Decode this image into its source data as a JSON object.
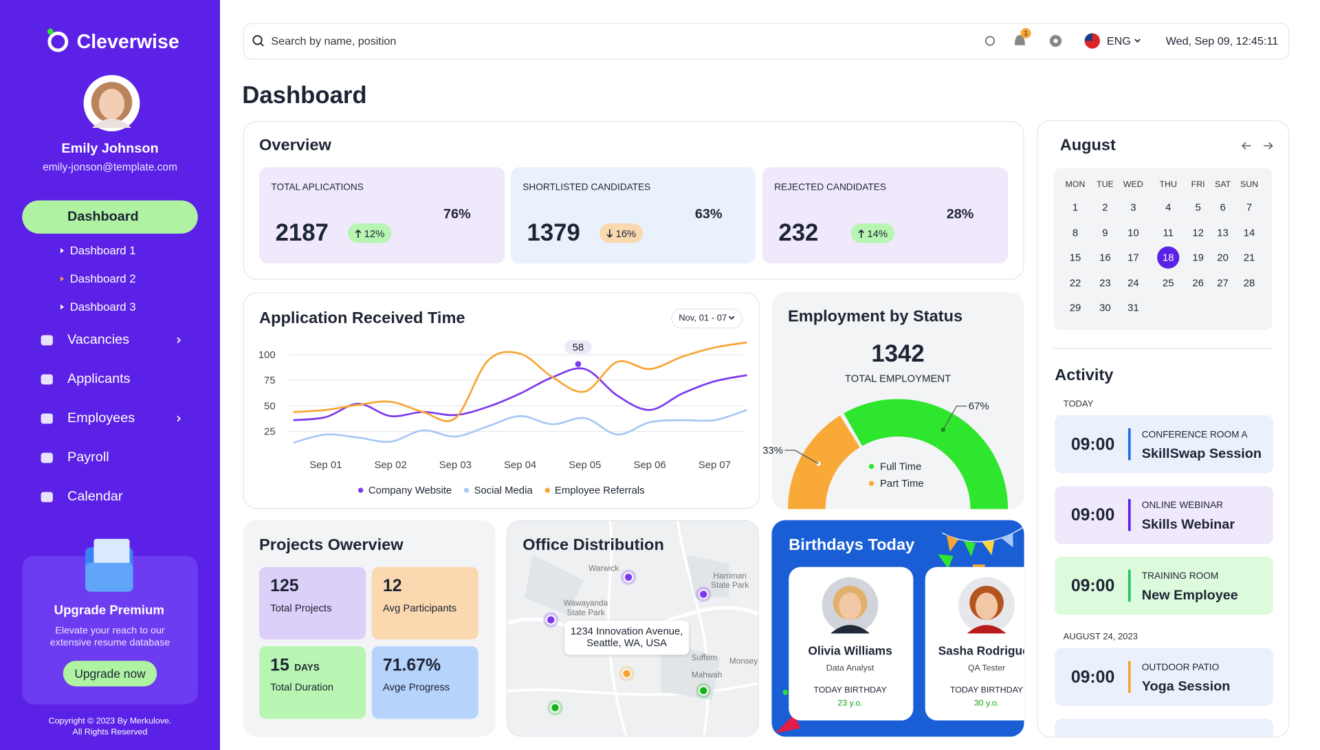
{
  "sidebar": {
    "brand": "Cleverwise",
    "user": {
      "name": "Emily Johnson",
      "email": "emily-jonson@template.com"
    },
    "menu": [
      {
        "label": "Dashboard",
        "active": true,
        "expandable": true,
        "children": [
          {
            "label": "Dashboard 1"
          },
          {
            "label": "Dashboard 2",
            "active": true
          },
          {
            "label": "Dashboard 3"
          }
        ]
      },
      {
        "label": "Vacancies",
        "expandable": true
      },
      {
        "label": "Applicants"
      },
      {
        "label": "Employees",
        "expandable": true
      },
      {
        "label": "Payroll"
      },
      {
        "label": "Calendar"
      }
    ],
    "promo": {
      "title": "Upgrade Premium",
      "text": "Elevate your reach to our extensive resume database",
      "button": "Upgrade now"
    },
    "copyright": [
      "Copyright © 2023 By Merkulove.",
      "All Rights Reserved"
    ]
  },
  "topbar": {
    "search_placeholder": "Search by name, position",
    "notification_count": "1",
    "language": "ENG",
    "datetime": "Wed, Sep 09, 12:45:11"
  },
  "page_title": "Dashboard",
  "overview": {
    "title": "Overview",
    "cards": [
      {
        "label": "TOTAL APLICATIONS",
        "value": "2187",
        "change": "12%",
        "trend": "up",
        "percent": 76,
        "percent_label": "76%",
        "color": "#9060f0",
        "background": "#efe9fb"
      },
      {
        "label": "SHORTLISTED CANDIDATES",
        "value": "1379",
        "change": "16%",
        "trend": "down",
        "percent": 63,
        "percent_label": "63%",
        "color": "#1e6fe0",
        "background": "#e9f1fd"
      },
      {
        "label": "REJECTED CANDIDATES",
        "value": "232",
        "change": "14%",
        "trend": "up",
        "percent": 28,
        "percent_label": "28%",
        "color": "#f7a534",
        "background": "#efe9fb"
      }
    ]
  },
  "applications_chart": {
    "type": "line",
    "title": "Application Received Time",
    "period": "Nov, 01 - 07",
    "categories": [
      null,
      "Sep 01",
      null,
      "Sep 02",
      null,
      "Sep 03",
      null,
      "Sep 04",
      null,
      "Sep 05",
      null,
      "Sep 06",
      null,
      "Sep 07",
      null
    ],
    "ylim": [
      5,
      115
    ],
    "yticks": [
      25,
      50,
      75,
      100
    ],
    "grid": true,
    "annotation": "58",
    "series": [
      {
        "name": "Company Website",
        "color": "#7c3aed",
        "values": [
          36,
          39,
          52,
          40,
          44,
          41,
          49,
          62,
          78,
          86,
          60,
          46,
          62,
          74,
          80
        ]
      },
      {
        "name": "Social Media",
        "color": "#a8c8f5",
        "values": [
          14,
          22,
          19,
          15,
          26,
          20,
          30,
          40,
          32,
          38,
          22,
          34,
          36,
          36,
          46
        ]
      },
      {
        "name": "Employee Referrals",
        "color": "#f7a534",
        "values": [
          44,
          46,
          51,
          54,
          44,
          38,
          94,
          101,
          78,
          64,
          93,
          86,
          98,
          107,
          112
        ]
      }
    ]
  },
  "employment_chart": {
    "type": "gauge",
    "title": "Employment by Status",
    "total": "1342",
    "total_label": "TOTAL EMPLOYMENT",
    "categories": [
      "Full Time",
      "Part Time"
    ],
    "values": [
      67,
      33
    ],
    "value_labels": [
      "67%",
      "33%"
    ],
    "colors": [
      "#2ee62e",
      "#f9a938"
    ]
  },
  "projects": {
    "title": "Projects Owerview",
    "cards": [
      {
        "value": "125",
        "label": "Total Projects",
        "progress": 52,
        "color": "#8b5cf6",
        "background": "#dccff8"
      },
      {
        "value": "12",
        "label": "Avg Participants",
        "progress": 50,
        "color": "#f7a534",
        "background": "#fad9b0"
      },
      {
        "value": "15",
        "unit": "DAYS",
        "label": "Total Duration",
        "progress": 52,
        "color": "#16b316",
        "background": "#b8f5b2"
      },
      {
        "value": "71.67%",
        "label": "Avge Progress",
        "progress": 52,
        "color": "#1e6fe0",
        "background": "#b5d3fb"
      }
    ]
  },
  "office": {
    "title": "Office Distribution",
    "address": [
      "1234 Innovation Avenue,",
      "Seattle, WA, USA"
    ],
    "places": [
      [
        "Warwick"
      ],
      [
        "Wawayanda",
        "State Park"
      ],
      [
        "Harriman",
        "State Park"
      ],
      [
        "Suffern"
      ],
      [
        "Monsey"
      ],
      [
        "Mahwah"
      ]
    ]
  },
  "birthdays": {
    "title": "Birthdays Today",
    "people": [
      {
        "name": "Olivia Williams",
        "role": "Data Analyst",
        "label": "TODAY BIRTHDAY",
        "age": "23 y.o."
      },
      {
        "name": "Sasha Rodriguez",
        "role": "QA Tester",
        "label": "TODAY BIRTHDAY",
        "age": "30 y.o."
      }
    ]
  },
  "calendar": {
    "month": "August",
    "weekdays": [
      "MON",
      "TUE",
      "WED",
      "THU",
      "FRI",
      "SAT",
      "SUN"
    ],
    "days": [
      1,
      2,
      3,
      4,
      5,
      6,
      7,
      8,
      9,
      10,
      11,
      12,
      13,
      14,
      15,
      16,
      17,
      18,
      19,
      20,
      21,
      22,
      23,
      24,
      25,
      26,
      27,
      28,
      29,
      30,
      31
    ],
    "selected": 18
  },
  "activity": {
    "title": "Activity",
    "sections": [
      {
        "label": "TODAY",
        "events": [
          {
            "time": "09:00",
            "place": "CONFERENCE ROOM A",
            "title": "SkillSwap Session",
            "color": "#1e6fe0",
            "background": "#eaf1fd"
          },
          {
            "time": "09:00",
            "place": "ONLINE WEBINAR",
            "title": "Skills Webinar",
            "color": "#5b21e6",
            "background": "#efe9fb"
          },
          {
            "time": "09:00",
            "place": "TRAINING ROOM",
            "title": "New Employee",
            "color": "#22c55e",
            "background": "#dcfadc"
          }
        ]
      },
      {
        "label": "AUGUST 24, 2023",
        "events": [
          {
            "time": "09:00",
            "place": "OUTDOOR PATIO",
            "title": "Yoga Session",
            "color": "#f7a534",
            "background": "#eaf1fd"
          }
        ]
      }
    ]
  }
}
